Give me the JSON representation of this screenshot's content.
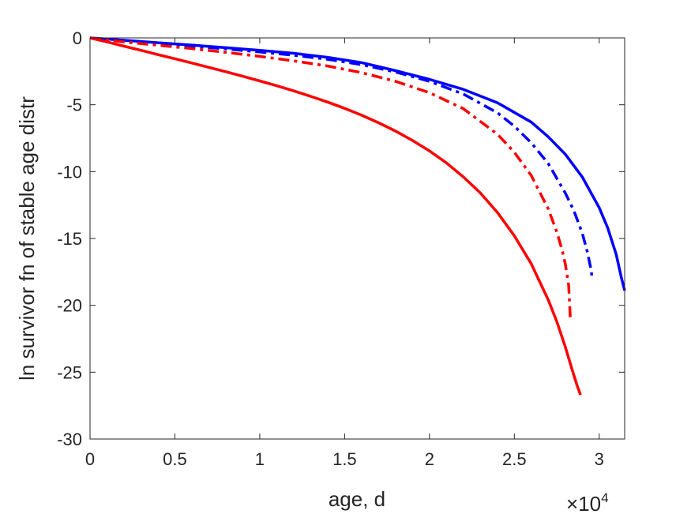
{
  "chart_data": {
    "type": "line",
    "xlabel": "age, d",
    "ylabel": "ln survivor fn of stable age distr",
    "x_exponent_label": "×10",
    "x_exponent_power": "4",
    "x_scale": 10000,
    "xlim": [
      0,
      31500
    ],
    "ylim": [
      -30,
      0
    ],
    "x_ticks": [
      0,
      5000,
      10000,
      15000,
      20000,
      25000,
      30000
    ],
    "x_tick_labels": [
      "0",
      "0.5",
      "1",
      "1.5",
      "2",
      "2.5",
      "3"
    ],
    "y_ticks": [
      0,
      -5,
      -10,
      -15,
      -20,
      -25,
      -30
    ],
    "y_tick_labels": [
      "0",
      "-5",
      "-10",
      "-15",
      "-20",
      "-25",
      "-30"
    ],
    "grid": false,
    "series": [
      {
        "color": "#0000ff",
        "style": "solid",
        "x": [
          0,
          2000,
          4000,
          6000,
          8000,
          10000,
          12000,
          14000,
          16000,
          18000,
          20000,
          22000,
          24000,
          26000,
          27000,
          28000,
          29000,
          30000,
          30500,
          31000,
          31300,
          31500
        ],
        "y": [
          0,
          -0.18,
          -0.36,
          -0.54,
          -0.73,
          -0.93,
          -1.15,
          -1.45,
          -1.85,
          -2.45,
          -3.1,
          -3.85,
          -4.85,
          -6.3,
          -7.4,
          -8.7,
          -10.4,
          -12.7,
          -14.2,
          -16.2,
          -17.9,
          -18.9
        ]
      },
      {
        "color": "#0000ff",
        "style": "dashdot",
        "x": [
          0,
          2000,
          4000,
          6000,
          8000,
          10000,
          12000,
          14000,
          16000,
          18000,
          20000,
          22000,
          24000,
          25000,
          26000,
          27000,
          28000,
          28500,
          29000,
          29300,
          29500,
          29600
        ],
        "y": [
          0,
          -0.25,
          -0.45,
          -0.62,
          -0.82,
          -1.05,
          -1.3,
          -1.6,
          -2.0,
          -2.55,
          -3.25,
          -4.2,
          -5.6,
          -6.6,
          -7.85,
          -9.4,
          -11.6,
          -12.9,
          -14.6,
          -16.0,
          -17.2,
          -18.1
        ]
      },
      {
        "color": "#ff0000",
        "style": "dashdot",
        "x": [
          0,
          2000,
          4000,
          6000,
          8000,
          10000,
          12000,
          14000,
          16000,
          18000,
          20000,
          22000,
          24000,
          25000,
          26000,
          27000,
          27500,
          27800,
          28000,
          28200,
          28300
        ],
        "y": [
          0,
          -0.3,
          -0.55,
          -0.8,
          -1.08,
          -1.38,
          -1.72,
          -2.1,
          -2.6,
          -3.25,
          -4.1,
          -5.3,
          -7.2,
          -8.55,
          -10.3,
          -12.8,
          -14.5,
          -15.8,
          -16.9,
          -18.5,
          -21.0
        ]
      },
      {
        "color": "#ff0000",
        "style": "solid",
        "x": [
          0,
          1000,
          2000,
          3000,
          4000,
          5000,
          6000,
          7000,
          8000,
          9000,
          10000,
          11000,
          12000,
          13000,
          14000,
          15000,
          16000,
          17000,
          18000,
          19000,
          20000,
          21000,
          22000,
          23000,
          24000,
          25000,
          26000,
          27000,
          27500,
          28000,
          28400,
          28700,
          28900
        ],
        "y": [
          0,
          -0.3,
          -0.62,
          -0.93,
          -1.25,
          -1.56,
          -1.88,
          -2.2,
          -2.53,
          -2.87,
          -3.22,
          -3.58,
          -3.96,
          -4.37,
          -4.8,
          -5.27,
          -5.78,
          -6.35,
          -6.97,
          -7.67,
          -8.45,
          -9.35,
          -10.4,
          -11.6,
          -13.05,
          -14.8,
          -16.9,
          -19.6,
          -21.2,
          -23.1,
          -24.8,
          -26.0,
          -26.7
        ]
      }
    ]
  }
}
